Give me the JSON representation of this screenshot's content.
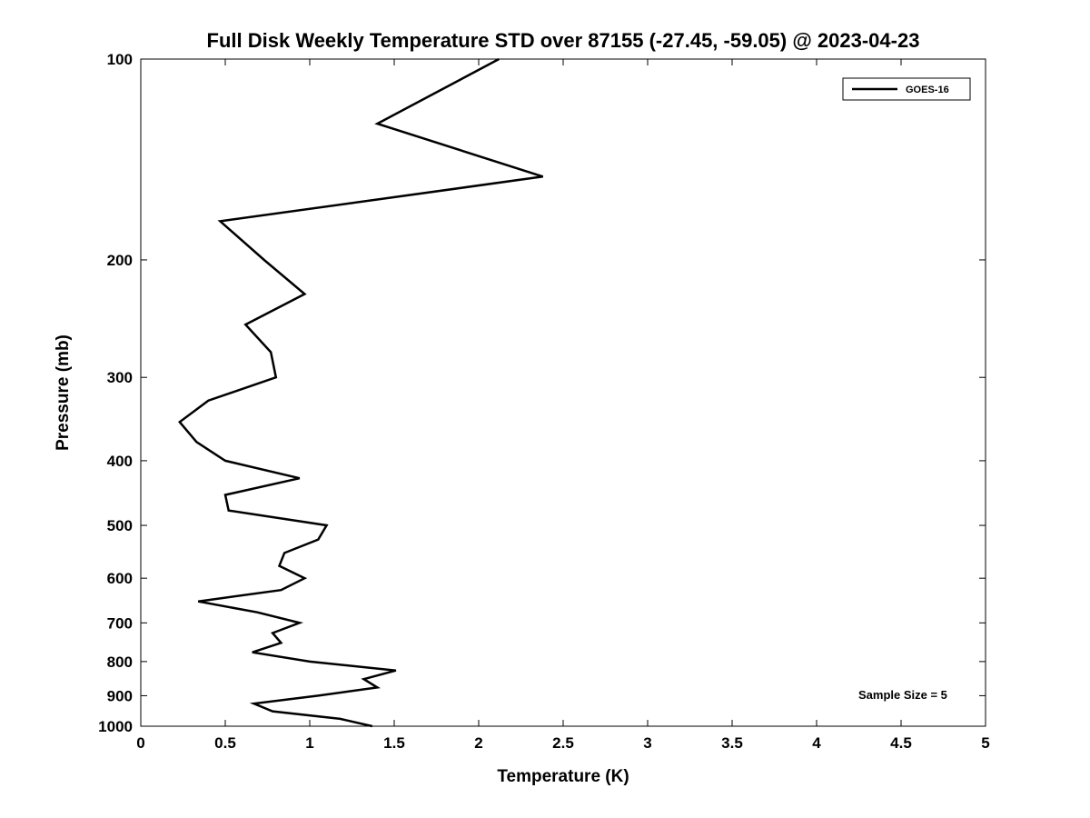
{
  "chart_data": {
    "type": "line",
    "title": "Full Disk Weekly Temperature STD over 87155 (-27.45, -59.05) @ 2023-04-23",
    "xlabel": "Temperature (K)",
    "ylabel": "Pressure (mb)",
    "xlim": [
      0,
      5
    ],
    "ylim": [
      100,
      1000
    ],
    "y_scale": "log",
    "y_inverted": true,
    "grid": false,
    "legend_position": "northeast",
    "annotation": "Sample Size = 5",
    "x_ticks": [
      "0",
      "0.5",
      "1",
      "1.5",
      "2",
      "2.5",
      "3",
      "3.5",
      "4",
      "4.5",
      "5"
    ],
    "x_tick_values": [
      0,
      0.5,
      1,
      1.5,
      2,
      2.5,
      3,
      3.5,
      4,
      4.5,
      5
    ],
    "y_ticks": [
      "100",
      "200",
      "300",
      "400",
      "500",
      "600",
      "700",
      "800",
      "900",
      "1000"
    ],
    "y_tick_values": [
      100,
      200,
      300,
      400,
      500,
      600,
      700,
      800,
      900,
      1000
    ],
    "pressure_mb": [
      100,
      125,
      150,
      175,
      200,
      225,
      250,
      275,
      300,
      325,
      350,
      375,
      400,
      425,
      450,
      475,
      500,
      525,
      550,
      575,
      600,
      625,
      650,
      675,
      700,
      725,
      750,
      775,
      800,
      825,
      850,
      875,
      900,
      925,
      950,
      975,
      1000
    ],
    "series": [
      {
        "name": "GOES-16",
        "color": "#000000",
        "temperature_std_K": [
          2.12,
          1.4,
          2.38,
          0.47,
          0.73,
          0.97,
          0.62,
          0.77,
          0.8,
          0.4,
          0.23,
          0.33,
          0.5,
          0.94,
          0.5,
          0.52,
          1.1,
          1.05,
          0.85,
          0.82,
          0.97,
          0.83,
          0.34,
          0.69,
          0.94,
          0.78,
          0.83,
          0.66,
          1.0,
          1.51,
          1.32,
          1.4,
          1.05,
          0.67,
          0.78,
          1.18,
          1.37
        ]
      }
    ]
  }
}
